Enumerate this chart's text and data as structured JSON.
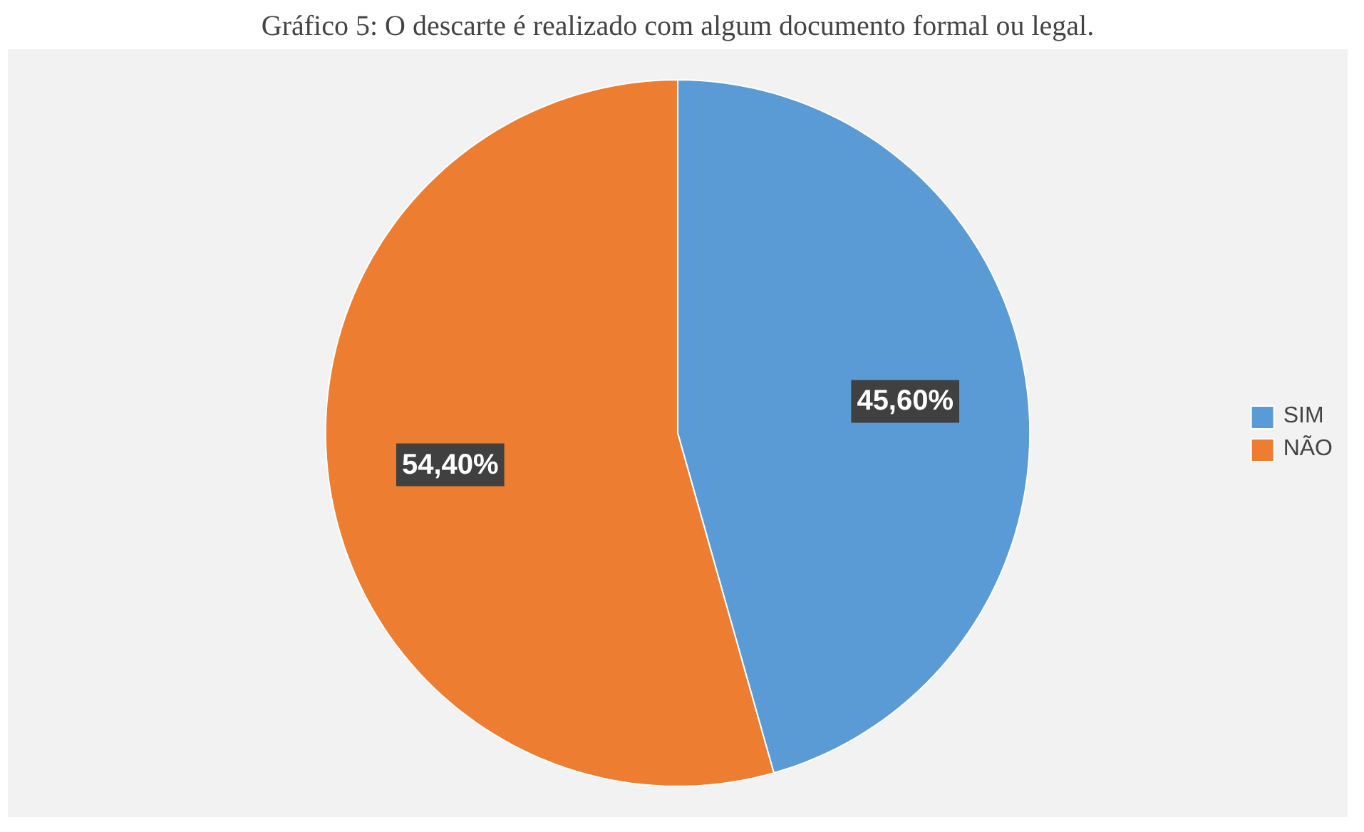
{
  "chart_data": {
    "type": "pie",
    "title": "Gráfico 5: O descarte é realizado com algum documento formal ou legal.",
    "categories": [
      "SIM",
      "NÃO"
    ],
    "values": [
      45.6,
      54.4
    ],
    "colors": [
      "#5b9bd5",
      "#ed7d31"
    ],
    "value_labels": [
      "45,60%",
      "54,40%"
    ],
    "legend": "right"
  }
}
